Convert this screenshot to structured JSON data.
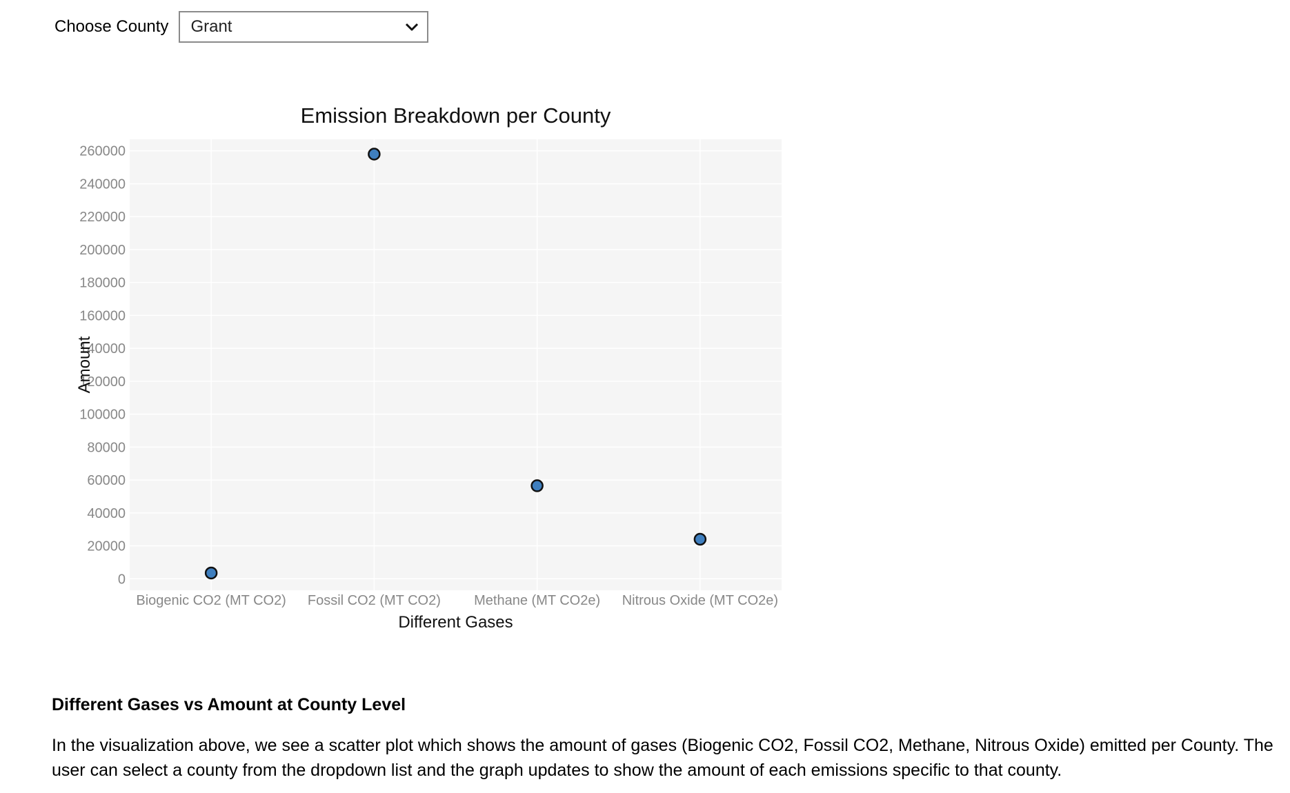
{
  "controls": {
    "county_label": "Choose County",
    "county_selected": "Grant"
  },
  "chart_data": {
    "type": "scatter",
    "title": "Emission Breakdown per County",
    "xlabel": "Different Gases",
    "ylabel": "Amount",
    "categories": [
      "Biogenic CO2 (MT CO2)",
      "Fossil CO2 (MT CO2)",
      "Methane (MT CO2e)",
      "Nitrous Oxide (MT CO2e)"
    ],
    "values": [
      3500,
      258000,
      56500,
      24000
    ],
    "ylim": [
      -7000,
      267000
    ],
    "yticks": [
      0,
      20000,
      40000,
      60000,
      80000,
      100000,
      120000,
      140000,
      160000,
      180000,
      200000,
      220000,
      240000,
      260000
    ],
    "grid": true,
    "marker_color": "#3f7fbf",
    "plot_bg": "#f5f5f5"
  },
  "description": {
    "heading": "Different Gases vs Amount at County Level",
    "body": "In the visualization above, we see a scatter plot which shows the amount of gases (Biogenic CO2, Fossil CO2, Methane, Nitrous Oxide) emitted per County. The user can select a county from the dropdown list and the graph updates to show the amount of each emissions specific to that county."
  }
}
